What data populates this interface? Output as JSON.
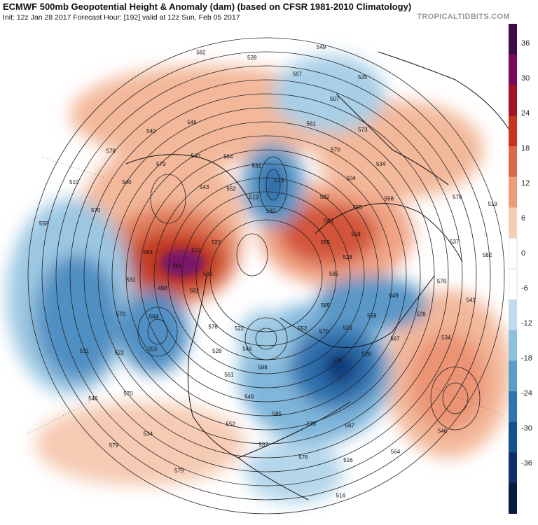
{
  "header": {
    "title": "ECMWF 500mb Geopotential Height & Anomaly (dam) (based on CFSR 1981-2010 Climatology)",
    "subtitle": "Init: 12z Jan 28 2017   Forecast Hour: [192]   valid at 12z Sun, Feb 05 2017",
    "brand": "TROPICALTIDBITS.COM"
  },
  "colorbar": {
    "ticks": [
      "36",
      "30",
      "24",
      "18",
      "12",
      "6",
      "0",
      "-6",
      "-12",
      "-18",
      "-24",
      "-30",
      "-36"
    ],
    "colors": [
      "#3d0b4a",
      "#7a0b5a",
      "#a0142a",
      "#c8331f",
      "#dc6a4a",
      "#ec9c78",
      "#f6cdb4",
      "#ffffff",
      "#ffffff",
      "#bfdbec",
      "#8cc0dd",
      "#5b9dc9",
      "#2e74b0",
      "#12508f",
      "#0b2f66",
      "#071a3f"
    ]
  },
  "map": {
    "contour_labels": [
      {
        "t": "585"
      },
      {
        "t": "576"
      },
      {
        "t": "573"
      },
      {
        "t": "570"
      },
      {
        "t": "564"
      },
      {
        "t": "558"
      },
      {
        "t": "552"
      },
      {
        "t": "546"
      },
      {
        "t": "534"
      },
      {
        "t": "531"
      },
      {
        "t": "525"
      },
      {
        "t": "516"
      },
      {
        "t": "522"
      },
      {
        "t": "528"
      },
      {
        "t": "528"
      },
      {
        "t": "531"
      },
      {
        "t": "528"
      },
      {
        "t": "531"
      },
      {
        "t": "534"
      },
      {
        "t": "537"
      },
      {
        "t": "540"
      },
      {
        "t": "543"
      },
      {
        "t": "546"
      },
      {
        "t": "549"
      },
      {
        "t": "552"
      },
      {
        "t": "555"
      },
      {
        "t": "558"
      },
      {
        "t": "561"
      },
      {
        "t": "564"
      },
      {
        "t": "567"
      },
      {
        "t": "570"
      },
      {
        "t": "573"
      },
      {
        "t": "576"
      },
      {
        "t": "579"
      },
      {
        "t": "582"
      },
      {
        "t": "579"
      },
      {
        "t": "582"
      },
      {
        "t": "570"
      },
      {
        "t": "561"
      },
      {
        "t": "555"
      },
      {
        "t": "549"
      },
      {
        "t": "540"
      },
      {
        "t": "528"
      },
      {
        "t": "522"
      },
      {
        "t": "507"
      },
      {
        "t": "516"
      },
      {
        "t": "510"
      },
      {
        "t": "519"
      },
      {
        "t": "522"
      },
      {
        "t": "513"
      },
      {
        "t": "501"
      },
      {
        "t": "498"
      },
      {
        "t": "504"
      },
      {
        "t": "585"
      },
      {
        "t": "579"
      },
      {
        "t": "576"
      },
      {
        "t": "570"
      },
      {
        "t": "567"
      },
      {
        "t": "564"
      },
      {
        "t": "558"
      },
      {
        "t": "555"
      },
      {
        "t": "546"
      },
      {
        "t": "552"
      },
      {
        "t": "558"
      },
      {
        "t": "564"
      },
      {
        "t": "570"
      },
      {
        "t": "576"
      },
      {
        "t": "540"
      },
      {
        "t": "537"
      },
      {
        "t": "534"
      },
      {
        "t": "528"
      },
      {
        "t": "546"
      },
      {
        "t": "582"
      },
      {
        "t": "585"
      },
      {
        "t": "588"
      },
      {
        "t": "543"
      },
      {
        "t": "549"
      },
      {
        "t": "555"
      },
      {
        "t": "561"
      },
      {
        "t": "567"
      },
      {
        "t": "570"
      },
      {
        "t": "576"
      },
      {
        "t": "579"
      },
      {
        "t": "582"
      },
      {
        "t": "585"
      },
      {
        "t": "582"
      },
      {
        "t": "582"
      }
    ]
  }
}
